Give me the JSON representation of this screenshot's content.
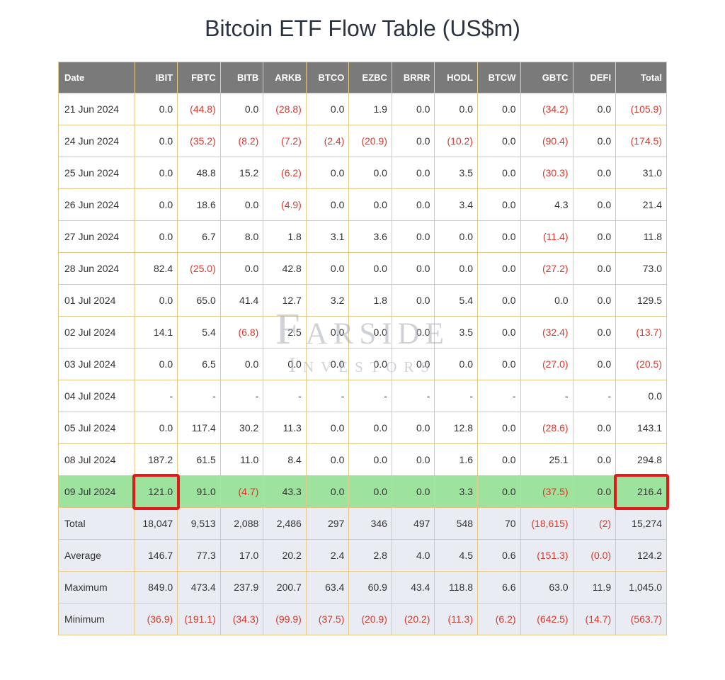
{
  "title": "Bitcoin ETF Flow Table (US$m)",
  "watermark": {
    "line1": "Farside",
    "line2": "Investors"
  },
  "table": {
    "columns": [
      "Date",
      "IBIT",
      "FBTC",
      "BITB",
      "ARKB",
      "BTCO",
      "EZBC",
      "BRRR",
      "HODL",
      "BTCW",
      "GBTC",
      "DEFI",
      "Total"
    ],
    "col_align": [
      "left",
      "right",
      "right",
      "right",
      "right",
      "right",
      "right",
      "right",
      "right",
      "right",
      "right",
      "right",
      "right"
    ],
    "border_color": "#e6c98a",
    "header_bg": "#7a7a7a",
    "header_fg": "#ffffff",
    "neg_color": "#d63a2e",
    "pos_color": "#333333",
    "highlight_bg": "#9de29d",
    "summary_bg": "#e9ecf2",
    "rows": [
      {
        "date": "21 Jun 2024",
        "cells": [
          "0.0",
          "(44.8)",
          "0.0",
          "(28.8)",
          "0.0",
          "1.9",
          "0.0",
          "0.0",
          "0.0",
          "(34.2)",
          "0.0",
          "(105.9)"
        ]
      },
      {
        "date": "24 Jun 2024",
        "cells": [
          "0.0",
          "(35.2)",
          "(8.2)",
          "(7.2)",
          "(2.4)",
          "(20.9)",
          "0.0",
          "(10.2)",
          "0.0",
          "(90.4)",
          "0.0",
          "(174.5)"
        ]
      },
      {
        "date": "25 Jun 2024",
        "cells": [
          "0.0",
          "48.8",
          "15.2",
          "(6.2)",
          "0.0",
          "0.0",
          "0.0",
          "3.5",
          "0.0",
          "(30.3)",
          "0.0",
          "31.0"
        ]
      },
      {
        "date": "26 Jun 2024",
        "cells": [
          "0.0",
          "18.6",
          "0.0",
          "(4.9)",
          "0.0",
          "0.0",
          "0.0",
          "3.4",
          "0.0",
          "4.3",
          "0.0",
          "21.4"
        ]
      },
      {
        "date": "27 Jun 2024",
        "cells": [
          "0.0",
          "6.7",
          "8.0",
          "1.8",
          "3.1",
          "3.6",
          "0.0",
          "0.0",
          "0.0",
          "(11.4)",
          "0.0",
          "11.8"
        ]
      },
      {
        "date": "28 Jun 2024",
        "cells": [
          "82.4",
          "(25.0)",
          "0.0",
          "42.8",
          "0.0",
          "0.0",
          "0.0",
          "0.0",
          "0.0",
          "(27.2)",
          "0.0",
          "73.0"
        ]
      },
      {
        "date": "01 Jul 2024",
        "cells": [
          "0.0",
          "65.0",
          "41.4",
          "12.7",
          "3.2",
          "1.8",
          "0.0",
          "5.4",
          "0.0",
          "0.0",
          "0.0",
          "129.5"
        ]
      },
      {
        "date": "02 Jul 2024",
        "cells": [
          "14.1",
          "5.4",
          "(6.8)",
          "2.5",
          "0.0",
          "0.0",
          "0.0",
          "3.5",
          "0.0",
          "(32.4)",
          "0.0",
          "(13.7)"
        ]
      },
      {
        "date": "03 Jul 2024",
        "cells": [
          "0.0",
          "6.5",
          "0.0",
          "0.0",
          "0.0",
          "0.0",
          "0.0",
          "0.0",
          "0.0",
          "(27.0)",
          "0.0",
          "(20.5)"
        ]
      },
      {
        "date": "04 Jul 2024",
        "cells": [
          "-",
          "-",
          "-",
          "-",
          "-",
          "-",
          "-",
          "-",
          "-",
          "-",
          "-",
          "0.0"
        ]
      },
      {
        "date": "05 Jul 2024",
        "cells": [
          "0.0",
          "117.4",
          "30.2",
          "11.3",
          "0.0",
          "0.0",
          "0.0",
          "12.8",
          "0.0",
          "(28.6)",
          "0.0",
          "143.1"
        ]
      },
      {
        "date": "08 Jul 2024",
        "cells": [
          "187.2",
          "61.5",
          "11.0",
          "8.4",
          "0.0",
          "0.0",
          "0.0",
          "1.6",
          "0.0",
          "25.1",
          "0.0",
          "294.8"
        ]
      },
      {
        "date": "09 Jul 2024",
        "highlight": true,
        "cells": [
          "121.0",
          "91.0",
          "(4.7)",
          "43.3",
          "0.0",
          "0.0",
          "0.0",
          "3.3",
          "0.0",
          "(37.5)",
          "0.0",
          "216.4"
        ]
      }
    ],
    "summary": [
      {
        "date": "Total",
        "cells": [
          "18,047",
          "9,513",
          "2,088",
          "2,486",
          "297",
          "346",
          "497",
          "548",
          "70",
          "(18,615)",
          "(2)",
          "15,274"
        ]
      },
      {
        "date": "Average",
        "cells": [
          "146.7",
          "77.3",
          "17.0",
          "20.2",
          "2.4",
          "2.8",
          "4.0",
          "4.5",
          "0.6",
          "(151.3)",
          "(0.0)",
          "124.2"
        ]
      },
      {
        "date": "Maximum",
        "cells": [
          "849.0",
          "473.4",
          "237.9",
          "200.7",
          "63.4",
          "60.9",
          "43.4",
          "118.8",
          "6.6",
          "63.0",
          "11.9",
          "1,045.0"
        ]
      },
      {
        "date": "Minimum",
        "cells": [
          "(36.9)",
          "(191.1)",
          "(34.3)",
          "(99.9)",
          "(37.5)",
          "(20.9)",
          "(20.2)",
          "(11.3)",
          "(6.2)",
          "(642.5)",
          "(14.7)",
          "(563.7)"
        ]
      }
    ]
  },
  "red_boxes": [
    {
      "row_index": 12,
      "col_index": 1
    },
    {
      "row_index": 12,
      "col_index": 12
    }
  ]
}
